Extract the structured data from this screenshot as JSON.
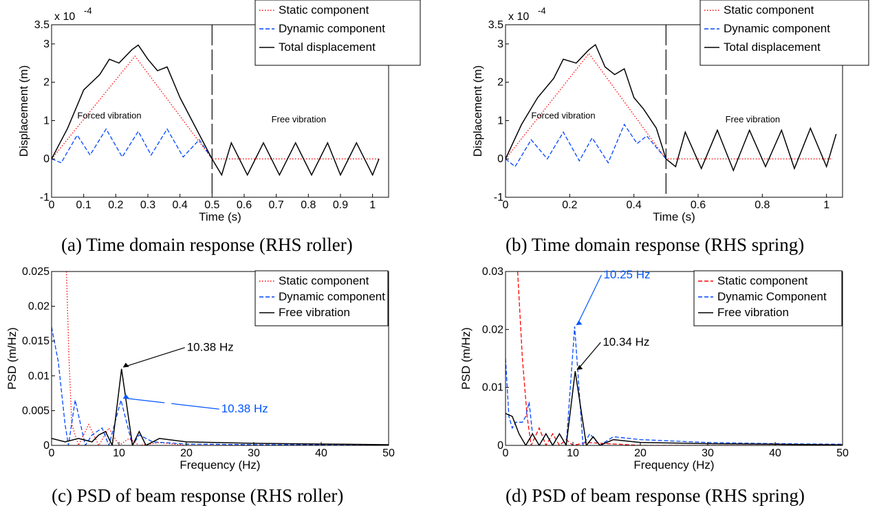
{
  "figures": [
    {
      "caption": "(a)  Time domain response (RHS roller)",
      "chart_data": {
        "type": "line",
        "xlabel": "Time (s)",
        "ylabel": "Displacement (m)",
        "exponent_label": "x 10",
        "exponent_power": "-4",
        "xlim": [
          0,
          1.05
        ],
        "ylim": [
          -1,
          3.5
        ],
        "xticks": [
          0,
          0.1,
          0.2,
          0.3,
          0.4,
          0.5,
          0.6,
          0.7,
          0.8,
          0.9,
          1
        ],
        "xtick_labels": [
          "0",
          "0.1",
          "0.2",
          "0.3",
          "0.4",
          "0.5",
          "0.6",
          "0.7",
          "0.8",
          "0.9",
          "1"
        ],
        "yticks": [
          -1,
          0,
          1,
          2,
          3,
          3.5
        ],
        "ytick_labels": [
          "-1",
          "0",
          "1",
          "2",
          "3",
          "3.5"
        ],
        "legend_position": "top-right",
        "series": [
          {
            "name": "Static component",
            "color": "#ff0000",
            "style": "dotted",
            "x": [
              0,
              0.26,
              0.5,
              1.02
            ],
            "y": [
              0,
              2.68,
              0,
              0
            ]
          },
          {
            "name": "Dynamic component",
            "color": "#0044ff",
            "style": "dashed",
            "x": [
              0,
              0.03,
              0.08,
              0.12,
              0.17,
              0.22,
              0.27,
              0.31,
              0.36,
              0.41,
              0.46,
              0.5
            ],
            "y": [
              0,
              -0.1,
              0.62,
              0.1,
              0.78,
              0.05,
              0.72,
              0.1,
              0.78,
              0.05,
              0.5,
              0.0
            ]
          },
          {
            "name": "Total displacement",
            "color": "#000000",
            "style": "solid",
            "x": [
              0,
              0.05,
              0.1,
              0.15,
              0.18,
              0.21,
              0.25,
              0.27,
              0.3,
              0.33,
              0.36,
              0.4,
              0.45,
              0.5,
              0.53,
              0.56,
              0.61,
              0.66,
              0.71,
              0.76,
              0.81,
              0.86,
              0.9,
              0.95,
              1.0,
              1.02
            ],
            "y": [
              0,
              0.8,
              1.8,
              2.2,
              2.6,
              2.5,
              2.85,
              2.97,
              2.6,
              2.3,
              2.4,
              1.6,
              0.8,
              0,
              -0.42,
              0.42,
              -0.42,
              0.42,
              -0.42,
              0.42,
              -0.42,
              0.42,
              -0.42,
              0.42,
              -0.42,
              0
            ]
          }
        ],
        "divider_x": 0.5,
        "annotations": [
          "Forced vibration",
          "Free vibration"
        ]
      }
    },
    {
      "caption": "(b)  Time domain response (RHS spring)",
      "chart_data": {
        "type": "line",
        "xlabel": "Time (s)",
        "ylabel": "Displacement (m)",
        "exponent_label": "x 10",
        "exponent_power": "-4",
        "xlim": [
          0,
          1.05
        ],
        "ylim": [
          -1,
          3.5
        ],
        "xticks": [
          0,
          0.2,
          0.4,
          0.6,
          0.8,
          1
        ],
        "xtick_labels": [
          "0",
          "0.2",
          "0.4",
          "0.6",
          "0.8",
          "1"
        ],
        "yticks": [
          -1,
          0,
          1,
          2,
          3,
          3.5
        ],
        "ytick_labels": [
          "-1",
          "0",
          "1",
          "2",
          "3",
          "3.5"
        ],
        "legend_position": "top-right",
        "series": [
          {
            "name": "Static component",
            "color": "#ff0000",
            "style": "dotted",
            "x": [
              0,
              0.26,
              0.5,
              1.02
            ],
            "y": [
              0,
              2.75,
              0,
              0
            ]
          },
          {
            "name": "Dynamic component",
            "color": "#0044ff",
            "style": "dashed",
            "x": [
              0,
              0.03,
              0.08,
              0.13,
              0.18,
              0.23,
              0.27,
              0.32,
              0.37,
              0.41,
              0.44,
              0.47,
              0.5
            ],
            "y": [
              0,
              -0.2,
              0.5,
              0.0,
              0.7,
              -0.05,
              0.55,
              -0.1,
              0.9,
              0.4,
              0.6,
              0.3,
              0.0
            ]
          },
          {
            "name": "Total displacement",
            "color": "#000000",
            "style": "solid",
            "x": [
              0,
              0.05,
              0.1,
              0.15,
              0.18,
              0.22,
              0.26,
              0.28,
              0.31,
              0.34,
              0.37,
              0.4,
              0.43,
              0.47,
              0.5,
              0.53,
              0.56,
              0.61,
              0.66,
              0.71,
              0.76,
              0.81,
              0.86,
              0.9,
              0.95,
              1.0,
              1.03
            ],
            "y": [
              0,
              0.9,
              1.6,
              2.1,
              2.6,
              2.5,
              2.85,
              2.98,
              2.4,
              2.2,
              2.35,
              1.6,
              1.3,
              0.8,
              0,
              -0.2,
              0.7,
              -0.25,
              0.75,
              -0.3,
              0.75,
              -0.2,
              0.75,
              -0.25,
              0.8,
              -0.2,
              0.65
            ]
          }
        ],
        "divider_x": 0.5,
        "annotations": [
          "Forced vibration",
          "Free vibration"
        ]
      }
    },
    {
      "caption": "(c) PSD of beam response (RHS roller)",
      "chart_data": {
        "type": "line",
        "xlabel": "Frequency (Hz)",
        "ylabel": "PSD (m/Hz)",
        "xlim": [
          0,
          50
        ],
        "ylim": [
          0,
          0.025
        ],
        "xticks": [
          0,
          10,
          20,
          30,
          40,
          50
        ],
        "xtick_labels": [
          "0",
          "10",
          "20",
          "30",
          "40",
          "50"
        ],
        "yticks": [
          0,
          0.005,
          0.01,
          0.015,
          0.02,
          0.025
        ],
        "ytick_labels": [
          "0",
          "0.005",
          "0.01",
          "0.015",
          "0.02",
          "0.025"
        ],
        "legend_position": "top-right",
        "series": [
          {
            "name": "Static component",
            "color": "#ff0000",
            "style": "dotted",
            "x": [
              2.2,
              2.6,
              3.0,
              4.0,
              5.5,
              7.0,
              8.5,
              10,
              11.5,
              13,
              16,
              20,
              30,
              40,
              50
            ],
            "y": [
              0.025,
              0.012,
              0.003,
              0.0,
              0.003,
              0.0,
              0.0025,
              0.0,
              0.001,
              0.0,
              0.0004,
              0.0,
              0.0,
              0.0,
              0.0
            ]
          },
          {
            "name": "Dynamic component",
            "color": "#0044ff",
            "style": "dashed",
            "x": [
              0,
              1,
              2,
              2.5,
              3.5,
              5,
              6,
              7.5,
              8.5,
              10.3,
              12,
              13,
              15,
              20,
              30,
              40,
              50
            ],
            "y": [
              0.017,
              0.012,
              0.003,
              0.0,
              0.0065,
              0.0,
              0.0015,
              0.0025,
              0.0,
              0.0065,
              0.0,
              0.0015,
              0.0005,
              0.0002,
              0.0001,
              0.0001,
              0.0
            ]
          },
          {
            "name": "Free vibration",
            "color": "#000000",
            "style": "solid",
            "x": [
              0,
              2,
              4,
              6,
              7,
              8,
              9,
              10.38,
              12,
              13,
              14,
              16,
              20,
              30,
              40,
              50
            ],
            "y": [
              0.001,
              0.0005,
              0.001,
              0.0005,
              0.0015,
              0.002,
              0.0,
              0.011,
              0.0,
              0.002,
              0.0,
              0.001,
              0.0005,
              0.0003,
              0.0002,
              0.0001
            ]
          }
        ],
        "peak_annotations": [
          {
            "text": "10.38 Hz",
            "color": "#000000",
            "x": 10.38,
            "y": 0.011
          },
          {
            "text": "10.38 Hz",
            "color": "#0055ff",
            "x": 10.38,
            "y": 0.0065
          }
        ]
      }
    },
    {
      "caption": "(d) PSD of beam response (RHS spring)",
      "chart_data": {
        "type": "line",
        "xlabel": "Frequency (Hz)",
        "ylabel": "PSD (m/Hz)",
        "xlim": [
          0,
          50
        ],
        "ylim": [
          0,
          0.03
        ],
        "xticks": [
          0,
          10,
          20,
          30,
          40,
          50
        ],
        "xtick_labels": [
          "0",
          "10",
          "20",
          "30",
          "40",
          "50"
        ],
        "yticks": [
          0,
          0.01,
          0.02,
          0.03
        ],
        "ytick_labels": [
          "0",
          "0.01",
          "0.02",
          "0.03"
        ],
        "legend_position": "top-right",
        "series": [
          {
            "name": "Static component",
            "color": "#ff0000",
            "style": "dashed",
            "x": [
              1.8,
              2.5,
              3.2,
              3.8,
              5,
              6,
              7,
              8,
              9,
              10,
              12,
              20,
              50
            ],
            "y": [
              0.03,
              0.015,
              0.005,
              0.0,
              0.003,
              0.0,
              0.002,
              0.0,
              0.001,
              0.0,
              0.0005,
              0.0,
              0.0
            ]
          },
          {
            "name": "Dynamic Component",
            "color": "#0044ff",
            "style": "dashed",
            "x": [
              0,
              0.5,
              1,
              1.5,
              2,
              2.5,
              3,
              3.5,
              4,
              5,
              6,
              7,
              8,
              9,
              10.25,
              11.5,
              12.5,
              14,
              16,
              20,
              30,
              40,
              50
            ],
            "y": [
              0.015,
              0.005,
              0.003,
              0.004,
              0.004,
              0.004,
              0.005,
              0.0075,
              0.002,
              0.0,
              0.002,
              0.0,
              0.002,
              0.0,
              0.0205,
              0.0,
              0.002,
              0.0,
              0.0015,
              0.001,
              0.0005,
              0.0003,
              0.0002
            ]
          },
          {
            "name": "Free vibration",
            "color": "#000000",
            "style": "solid",
            "x": [
              0,
              1,
              2,
              3,
              4,
              5,
              6,
              7,
              8,
              9,
              10.34,
              12,
              13,
              14,
              16,
              20,
              30,
              40,
              50
            ],
            "y": [
              0.0055,
              0.005,
              0.002,
              0.0,
              0.002,
              0.0,
              0.002,
              0.0,
              0.002,
              0.0,
              0.0128,
              0.0,
              0.0015,
              0.0,
              0.001,
              0.0005,
              0.0003,
              0.0002,
              0.0001
            ]
          }
        ],
        "peak_annotations": [
          {
            "text": "10.25 Hz",
            "color": "#0055ff",
            "x": 10.25,
            "y": 0.0205
          },
          {
            "text": "10.34 Hz",
            "color": "#000000",
            "x": 10.34,
            "y": 0.0128
          }
        ]
      }
    }
  ]
}
